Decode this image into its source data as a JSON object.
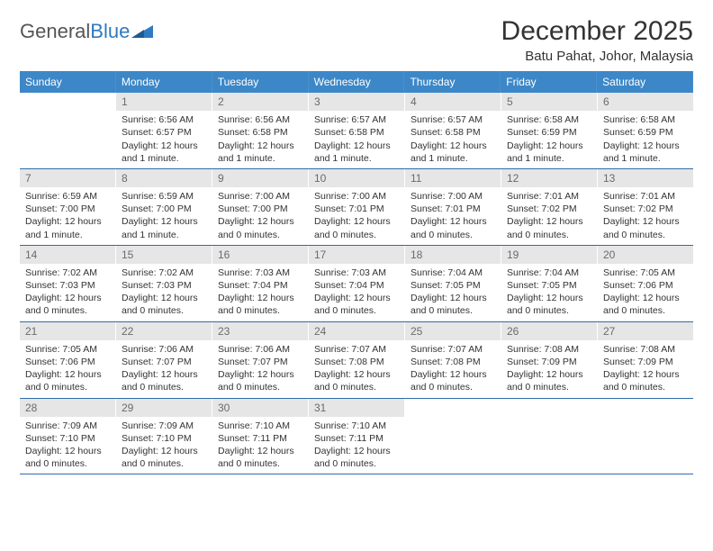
{
  "logo": {
    "text1": "General",
    "text2": "Blue"
  },
  "title": "December 2025",
  "location": "Batu Pahat, Johor, Malaysia",
  "colors": {
    "header_bg": "#3c87c7",
    "header_text": "#ffffff",
    "daynum_bg": "#e6e6e6",
    "daynum_text": "#6b6b6b",
    "rule": "#2f6ca8",
    "body_text": "#333333"
  },
  "dow": [
    "Sunday",
    "Monday",
    "Tuesday",
    "Wednesday",
    "Thursday",
    "Friday",
    "Saturday"
  ],
  "weeks": [
    [
      {
        "n": "",
        "blank": true
      },
      {
        "n": "1",
        "sr": "Sunrise: 6:56 AM",
        "ss": "Sunset: 6:57 PM",
        "d1": "Daylight: 12 hours",
        "d2": "and 1 minute."
      },
      {
        "n": "2",
        "sr": "Sunrise: 6:56 AM",
        "ss": "Sunset: 6:58 PM",
        "d1": "Daylight: 12 hours",
        "d2": "and 1 minute."
      },
      {
        "n": "3",
        "sr": "Sunrise: 6:57 AM",
        "ss": "Sunset: 6:58 PM",
        "d1": "Daylight: 12 hours",
        "d2": "and 1 minute."
      },
      {
        "n": "4",
        "sr": "Sunrise: 6:57 AM",
        "ss": "Sunset: 6:58 PM",
        "d1": "Daylight: 12 hours",
        "d2": "and 1 minute."
      },
      {
        "n": "5",
        "sr": "Sunrise: 6:58 AM",
        "ss": "Sunset: 6:59 PM",
        "d1": "Daylight: 12 hours",
        "d2": "and 1 minute."
      },
      {
        "n": "6",
        "sr": "Sunrise: 6:58 AM",
        "ss": "Sunset: 6:59 PM",
        "d1": "Daylight: 12 hours",
        "d2": "and 1 minute."
      }
    ],
    [
      {
        "n": "7",
        "sr": "Sunrise: 6:59 AM",
        "ss": "Sunset: 7:00 PM",
        "d1": "Daylight: 12 hours",
        "d2": "and 1 minute."
      },
      {
        "n": "8",
        "sr": "Sunrise: 6:59 AM",
        "ss": "Sunset: 7:00 PM",
        "d1": "Daylight: 12 hours",
        "d2": "and 1 minute."
      },
      {
        "n": "9",
        "sr": "Sunrise: 7:00 AM",
        "ss": "Sunset: 7:00 PM",
        "d1": "Daylight: 12 hours",
        "d2": "and 0 minutes."
      },
      {
        "n": "10",
        "sr": "Sunrise: 7:00 AM",
        "ss": "Sunset: 7:01 PM",
        "d1": "Daylight: 12 hours",
        "d2": "and 0 minutes."
      },
      {
        "n": "11",
        "sr": "Sunrise: 7:00 AM",
        "ss": "Sunset: 7:01 PM",
        "d1": "Daylight: 12 hours",
        "d2": "and 0 minutes."
      },
      {
        "n": "12",
        "sr": "Sunrise: 7:01 AM",
        "ss": "Sunset: 7:02 PM",
        "d1": "Daylight: 12 hours",
        "d2": "and 0 minutes."
      },
      {
        "n": "13",
        "sr": "Sunrise: 7:01 AM",
        "ss": "Sunset: 7:02 PM",
        "d1": "Daylight: 12 hours",
        "d2": "and 0 minutes."
      }
    ],
    [
      {
        "n": "14",
        "sr": "Sunrise: 7:02 AM",
        "ss": "Sunset: 7:03 PM",
        "d1": "Daylight: 12 hours",
        "d2": "and 0 minutes."
      },
      {
        "n": "15",
        "sr": "Sunrise: 7:02 AM",
        "ss": "Sunset: 7:03 PM",
        "d1": "Daylight: 12 hours",
        "d2": "and 0 minutes."
      },
      {
        "n": "16",
        "sr": "Sunrise: 7:03 AM",
        "ss": "Sunset: 7:04 PM",
        "d1": "Daylight: 12 hours",
        "d2": "and 0 minutes."
      },
      {
        "n": "17",
        "sr": "Sunrise: 7:03 AM",
        "ss": "Sunset: 7:04 PM",
        "d1": "Daylight: 12 hours",
        "d2": "and 0 minutes."
      },
      {
        "n": "18",
        "sr": "Sunrise: 7:04 AM",
        "ss": "Sunset: 7:05 PM",
        "d1": "Daylight: 12 hours",
        "d2": "and 0 minutes."
      },
      {
        "n": "19",
        "sr": "Sunrise: 7:04 AM",
        "ss": "Sunset: 7:05 PM",
        "d1": "Daylight: 12 hours",
        "d2": "and 0 minutes."
      },
      {
        "n": "20",
        "sr": "Sunrise: 7:05 AM",
        "ss": "Sunset: 7:06 PM",
        "d1": "Daylight: 12 hours",
        "d2": "and 0 minutes."
      }
    ],
    [
      {
        "n": "21",
        "sr": "Sunrise: 7:05 AM",
        "ss": "Sunset: 7:06 PM",
        "d1": "Daylight: 12 hours",
        "d2": "and 0 minutes."
      },
      {
        "n": "22",
        "sr": "Sunrise: 7:06 AM",
        "ss": "Sunset: 7:07 PM",
        "d1": "Daylight: 12 hours",
        "d2": "and 0 minutes."
      },
      {
        "n": "23",
        "sr": "Sunrise: 7:06 AM",
        "ss": "Sunset: 7:07 PM",
        "d1": "Daylight: 12 hours",
        "d2": "and 0 minutes."
      },
      {
        "n": "24",
        "sr": "Sunrise: 7:07 AM",
        "ss": "Sunset: 7:08 PM",
        "d1": "Daylight: 12 hours",
        "d2": "and 0 minutes."
      },
      {
        "n": "25",
        "sr": "Sunrise: 7:07 AM",
        "ss": "Sunset: 7:08 PM",
        "d1": "Daylight: 12 hours",
        "d2": "and 0 minutes."
      },
      {
        "n": "26",
        "sr": "Sunrise: 7:08 AM",
        "ss": "Sunset: 7:09 PM",
        "d1": "Daylight: 12 hours",
        "d2": "and 0 minutes."
      },
      {
        "n": "27",
        "sr": "Sunrise: 7:08 AM",
        "ss": "Sunset: 7:09 PM",
        "d1": "Daylight: 12 hours",
        "d2": "and 0 minutes."
      }
    ],
    [
      {
        "n": "28",
        "sr": "Sunrise: 7:09 AM",
        "ss": "Sunset: 7:10 PM",
        "d1": "Daylight: 12 hours",
        "d2": "and 0 minutes."
      },
      {
        "n": "29",
        "sr": "Sunrise: 7:09 AM",
        "ss": "Sunset: 7:10 PM",
        "d1": "Daylight: 12 hours",
        "d2": "and 0 minutes."
      },
      {
        "n": "30",
        "sr": "Sunrise: 7:10 AM",
        "ss": "Sunset: 7:11 PM",
        "d1": "Daylight: 12 hours",
        "d2": "and 0 minutes."
      },
      {
        "n": "31",
        "sr": "Sunrise: 7:10 AM",
        "ss": "Sunset: 7:11 PM",
        "d1": "Daylight: 12 hours",
        "d2": "and 0 minutes."
      },
      {
        "n": "",
        "blank": true
      },
      {
        "n": "",
        "blank": true
      },
      {
        "n": "",
        "blank": true
      }
    ]
  ]
}
